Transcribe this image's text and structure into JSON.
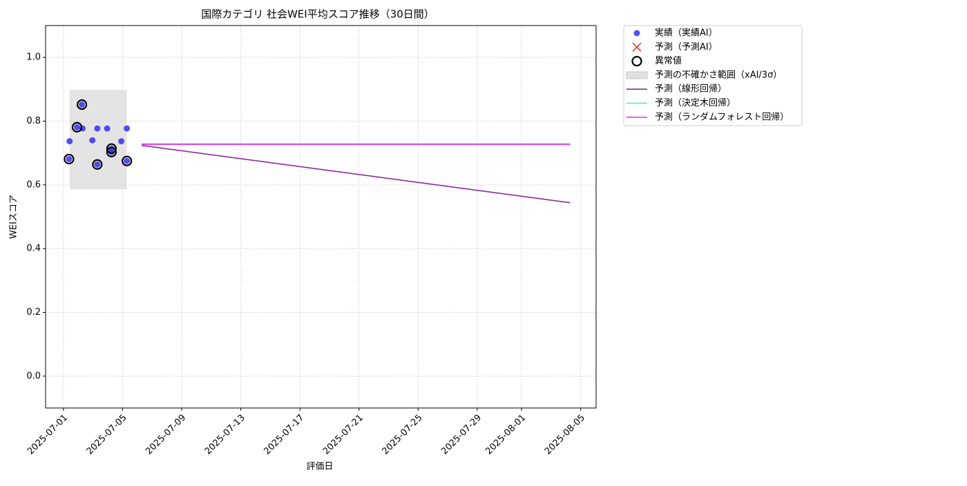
{
  "chart_data": {
    "type": "scatter",
    "title": "国際カテゴリ 社会WEI平均スコア推移（30日間）",
    "xlabel": "評価日",
    "ylabel": "WEIスコア",
    "xlim": [
      "2025-06-29T19:00",
      "2025-08-06T01:00"
    ],
    "xticks": [
      "2025-07-01",
      "2025-07-05",
      "2025-07-09",
      "2025-07-13",
      "2025-07-17",
      "2025-07-21",
      "2025-07-25",
      "2025-07-29",
      "2025-08-01",
      "2025-08-05"
    ],
    "ylim": [
      -0.1,
      1.1
    ],
    "yticks": [
      {
        "value": 0,
        "label": "0.0"
      },
      0.2,
      0.4,
      0.6,
      0.8,
      {
        "value": 1,
        "label": "1.0"
      }
    ],
    "grid": true,
    "legend": "outside upper right",
    "band": {
      "name": "予測の不確かさ範囲（xAI/3σ）",
      "color": "#d9d9d9",
      "x": [
        "2025-07-01T10:00",
        "2025-07-05T07:00"
      ],
      "lower": 0.586,
      "upper": 0.898
    },
    "series": [
      {
        "name": "実績（実績AI）",
        "kind": "scatter",
        "color": "#3333ee",
        "x": [
          "2025-07-01T10:00",
          "2025-07-01T09:00",
          "2025-07-01T22:00",
          "2025-07-02T06:00",
          "2025-07-02T07:00",
          "2025-07-02T23:00",
          "2025-07-03T07:00",
          "2025-07-03T07:00",
          "2025-07-03T23:00",
          "2025-07-04T06:00",
          "2025-07-04T06:00",
          "2025-07-04T22:00",
          "2025-07-05T07:00",
          "2025-07-05T07:00"
        ],
        "values": [
          0.737,
          0.681,
          0.781,
          0.852,
          0.777,
          0.74,
          0.777,
          0.664,
          0.777,
          0.714,
          0.703,
          0.737,
          0.777,
          0.675
        ]
      },
      {
        "name": "予測（予測AI）",
        "kind": "cross",
        "color": "#ee3333",
        "x": [],
        "values": []
      },
      {
        "name": "異常値",
        "kind": "ring",
        "color": "#000000",
        "x": [
          "2025-07-01T09:00",
          "2025-07-01T22:00",
          "2025-07-02T06:00",
          "2025-07-03T07:00",
          "2025-07-04T06:00",
          "2025-07-04T06:00",
          "2025-07-05T07:00"
        ],
        "values": [
          0.681,
          0.781,
          0.852,
          0.664,
          0.714,
          0.703,
          0.675
        ]
      },
      {
        "name": "予測（線形回帰）",
        "kind": "line",
        "color": "#8b2a9b",
        "x": [
          "2025-07-06T07:00",
          "2025-08-04T07:00"
        ],
        "values": [
          0.724,
          0.544
        ]
      },
      {
        "name": "予測（決定木回帰）",
        "kind": "line",
        "color": "#33eeee",
        "x": [
          "2025-07-06T07:00",
          "2025-08-04T07:00"
        ],
        "values": [
          0.729,
          0.729
        ]
      },
      {
        "name": "予測（ランダムフォレスト回帰）",
        "kind": "line",
        "color": "#ee33ee",
        "x": [
          "2025-07-06T07:00",
          "2025-08-04T07:00"
        ],
        "values": [
          0.727,
          0.727
        ]
      }
    ]
  }
}
